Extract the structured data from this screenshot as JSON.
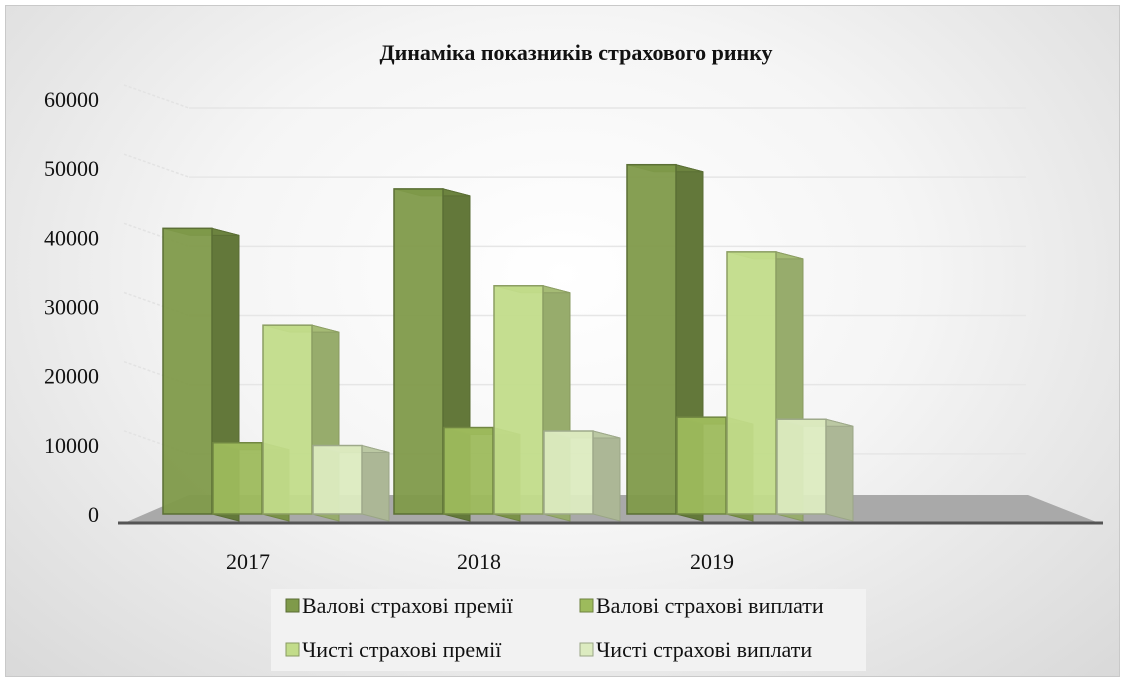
{
  "chart_data": {
    "type": "bar",
    "title": "Динаміка показників страхового ринку",
    "categories": [
      "2017",
      "2018",
      "2019"
    ],
    "ylim": [
      0,
      60000
    ],
    "yticks": [
      0,
      10000,
      20000,
      30000,
      40000,
      50000,
      60000
    ],
    "grid": true,
    "legend_position": "bottom",
    "series": [
      {
        "name": "Валові страхові премії",
        "values": [
          41300,
          47000,
          50500
        ],
        "color": "#7f9a4a"
      },
      {
        "name": "Валові страхові виплати",
        "values": [
          10300,
          12500,
          14000
        ],
        "color": "#9dbb5c"
      },
      {
        "name": "Чисті страхові премії",
        "values": [
          27300,
          33000,
          37900
        ],
        "color": "#c2dc8a"
      },
      {
        "name": "Чисті страхові виплати",
        "values": [
          9900,
          12000,
          13700
        ],
        "color": "#dcebc0"
      }
    ]
  }
}
